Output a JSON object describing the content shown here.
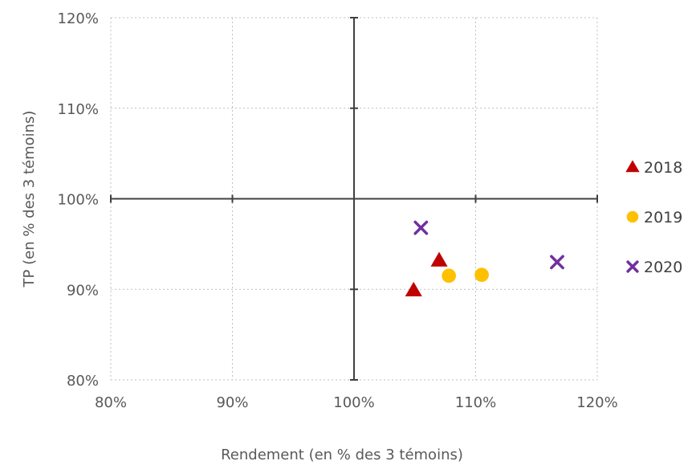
{
  "chart_data": {
    "type": "scatter",
    "title": "",
    "xlabel": "Rendement (en % des 3 témoins)",
    "ylabel": "TP (en % des 3 témoins)",
    "xlim": [
      80,
      120
    ],
    "ylim": [
      80,
      120
    ],
    "x_ticks": [
      80,
      90,
      100,
      110,
      120
    ],
    "y_ticks": [
      80,
      90,
      100,
      110,
      120
    ],
    "x_tick_labels": [
      "80%",
      "90%",
      "100%",
      "110%",
      "120%"
    ],
    "y_tick_labels": [
      "80%",
      "90%",
      "100%",
      "110%",
      "120%"
    ],
    "grid": true,
    "grid_style": "dotted",
    "quadrant_axes_at": [
      100,
      100
    ],
    "legend_position": "right",
    "series": [
      {
        "name": "2018",
        "marker": "triangle",
        "color": "#c00000",
        "points": [
          {
            "x": 104.9,
            "y": 89.9
          },
          {
            "x": 107.0,
            "y": 93.2
          }
        ]
      },
      {
        "name": "2019",
        "marker": "circle",
        "color": "#ffc000",
        "points": [
          {
            "x": 107.8,
            "y": 91.5
          },
          {
            "x": 110.5,
            "y": 91.6
          }
        ]
      },
      {
        "name": "2020",
        "marker": "x",
        "color": "#7030a0",
        "points": [
          {
            "x": 105.5,
            "y": 96.8
          },
          {
            "x": 116.7,
            "y": 93.0
          }
        ]
      }
    ]
  }
}
